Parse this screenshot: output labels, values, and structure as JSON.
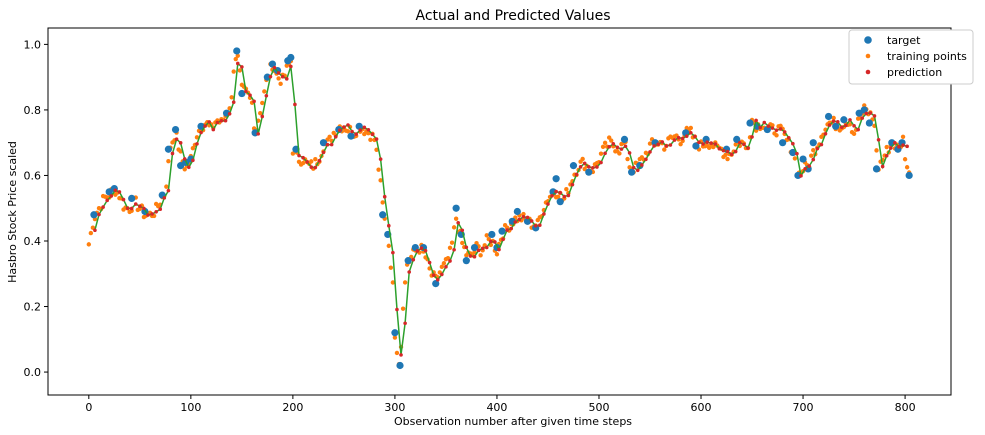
{
  "chart_data": {
    "type": "scatter",
    "title": "Actual and Predicted Values",
    "xlabel": "Observation number after given time steps",
    "ylabel": "Hasbro Stock Price scaled",
    "xlim": [
      -40,
      845
    ],
    "ylim": [
      -0.07,
      1.05
    ],
    "x_ticks": [
      0,
      100,
      200,
      300,
      400,
      500,
      600,
      700,
      800
    ],
    "y_ticks": [
      0.0,
      0.2,
      0.4,
      0.6,
      0.8,
      1.0
    ],
    "legend_position": "top-right",
    "grid": false,
    "series": [
      {
        "name": "target",
        "style": "large-dot",
        "color": "#1f77b4"
      },
      {
        "name": "training points",
        "style": "small-dot",
        "color": "#ff7f0e"
      },
      {
        "name": "prediction",
        "style": "small-dot-with-line",
        "color": "#d62728",
        "line_color": "#2ca02c"
      }
    ],
    "keypoints": [
      [
        0,
        0.39
      ],
      [
        5,
        0.47
      ],
      [
        10,
        0.5
      ],
      [
        15,
        0.53
      ],
      [
        20,
        0.54
      ],
      [
        25,
        0.56
      ],
      [
        30,
        0.54
      ],
      [
        35,
        0.5
      ],
      [
        40,
        0.5
      ],
      [
        45,
        0.52
      ],
      [
        50,
        0.5
      ],
      [
        55,
        0.48
      ],
      [
        60,
        0.48
      ],
      [
        65,
        0.49
      ],
      [
        70,
        0.52
      ],
      [
        75,
        0.55
      ],
      [
        80,
        0.69
      ],
      [
        85,
        0.73
      ],
      [
        90,
        0.66
      ],
      [
        95,
        0.62
      ],
      [
        100,
        0.65
      ],
      [
        105,
        0.72
      ],
      [
        110,
        0.75
      ],
      [
        115,
        0.76
      ],
      [
        120,
        0.74
      ],
      [
        125,
        0.77
      ],
      [
        130,
        0.76
      ],
      [
        135,
        0.79
      ],
      [
        140,
        0.83
      ],
      [
        142,
        0.93
      ],
      [
        145,
        0.98
      ],
      [
        150,
        0.86
      ],
      [
        155,
        0.85
      ],
      [
        160,
        0.82
      ],
      [
        163,
        0.73
      ],
      [
        168,
        0.8
      ],
      [
        172,
        0.85
      ],
      [
        175,
        0.9
      ],
      [
        180,
        0.94
      ],
      [
        185,
        0.9
      ],
      [
        190,
        0.89
      ],
      [
        195,
        0.93
      ],
      [
        198,
        0.95
      ],
      [
        200,
        0.68
      ],
      [
        205,
        0.65
      ],
      [
        210,
        0.65
      ],
      [
        215,
        0.63
      ],
      [
        220,
        0.63
      ],
      [
        225,
        0.65
      ],
      [
        230,
        0.69
      ],
      [
        235,
        0.7
      ],
      [
        240,
        0.73
      ],
      [
        245,
        0.75
      ],
      [
        250,
        0.75
      ],
      [
        255,
        0.74
      ],
      [
        260,
        0.73
      ],
      [
        265,
        0.75
      ],
      [
        270,
        0.74
      ],
      [
        275,
        0.73
      ],
      [
        280,
        0.71
      ],
      [
        283,
        0.65
      ],
      [
        286,
        0.57
      ],
      [
        289,
        0.48
      ],
      [
        292,
        0.43
      ],
      [
        295,
        0.37
      ],
      [
        298,
        0.26
      ],
      [
        300,
        0.12
      ],
      [
        303,
        0.05
      ],
      [
        305,
        0.02
      ],
      [
        308,
        0.21
      ],
      [
        312,
        0.33
      ],
      [
        316,
        0.35
      ],
      [
        320,
        0.37
      ],
      [
        325,
        0.38
      ],
      [
        330,
        0.35
      ],
      [
        335,
        0.3
      ],
      [
        340,
        0.28
      ],
      [
        345,
        0.31
      ],
      [
        350,
        0.33
      ],
      [
        355,
        0.37
      ],
      [
        360,
        0.47
      ],
      [
        365,
        0.4
      ],
      [
        370,
        0.36
      ],
      [
        375,
        0.35
      ],
      [
        380,
        0.38
      ],
      [
        385,
        0.37
      ],
      [
        390,
        0.4
      ],
      [
        395,
        0.4
      ],
      [
        400,
        0.37
      ],
      [
        405,
        0.42
      ],
      [
        410,
        0.44
      ],
      [
        415,
        0.46
      ],
      [
        420,
        0.47
      ],
      [
        425,
        0.47
      ],
      [
        430,
        0.46
      ],
      [
        435,
        0.45
      ],
      [
        440,
        0.45
      ],
      [
        445,
        0.5
      ],
      [
        450,
        0.53
      ],
      [
        455,
        0.55
      ],
      [
        460,
        0.55
      ],
      [
        465,
        0.52
      ],
      [
        470,
        0.56
      ],
      [
        475,
        0.6
      ],
      [
        480,
        0.63
      ],
      [
        485,
        0.64
      ],
      [
        490,
        0.62
      ],
      [
        495,
        0.62
      ],
      [
        500,
        0.65
      ],
      [
        505,
        0.68
      ],
      [
        510,
        0.7
      ],
      [
        515,
        0.69
      ],
      [
        520,
        0.68
      ],
      [
        525,
        0.7
      ],
      [
        530,
        0.63
      ],
      [
        535,
        0.62
      ],
      [
        540,
        0.64
      ],
      [
        545,
        0.66
      ],
      [
        550,
        0.69
      ],
      [
        555,
        0.7
      ],
      [
        560,
        0.7
      ],
      [
        565,
        0.69
      ],
      [
        570,
        0.71
      ],
      [
        575,
        0.72
      ],
      [
        580,
        0.71
      ],
      [
        585,
        0.73
      ],
      [
        590,
        0.73
      ],
      [
        595,
        0.7
      ],
      [
        600,
        0.69
      ],
      [
        605,
        0.7
      ],
      [
        610,
        0.7
      ],
      [
        615,
        0.68
      ],
      [
        620,
        0.68
      ],
      [
        625,
        0.66
      ],
      [
        630,
        0.67
      ],
      [
        635,
        0.7
      ],
      [
        640,
        0.7
      ],
      [
        645,
        0.68
      ],
      [
        650,
        0.77
      ],
      [
        655,
        0.75
      ],
      [
        660,
        0.76
      ],
      [
        665,
        0.74
      ],
      [
        670,
        0.74
      ],
      [
        675,
        0.74
      ],
      [
        680,
        0.73
      ],
      [
        685,
        0.7
      ],
      [
        690,
        0.68
      ],
      [
        695,
        0.6
      ],
      [
        700,
        0.62
      ],
      [
        705,
        0.63
      ],
      [
        710,
        0.67
      ],
      [
        715,
        0.7
      ],
      [
        720,
        0.74
      ],
      [
        725,
        0.76
      ],
      [
        730,
        0.76
      ],
      [
        735,
        0.75
      ],
      [
        740,
        0.76
      ],
      [
        745,
        0.77
      ],
      [
        750,
        0.73
      ],
      [
        755,
        0.77
      ],
      [
        760,
        0.8
      ],
      [
        765,
        0.79
      ],
      [
        770,
        0.76
      ],
      [
        773,
        0.62
      ],
      [
        778,
        0.65
      ],
      [
        783,
        0.68
      ],
      [
        788,
        0.7
      ],
      [
        793,
        0.68
      ],
      [
        798,
        0.71
      ],
      [
        801,
        0.64
      ],
      [
        804,
        0.6
      ]
    ],
    "target_points": [
      [
        5,
        0.48
      ],
      [
        20,
        0.55
      ],
      [
        25,
        0.56
      ],
      [
        42,
        0.53
      ],
      [
        55,
        0.49
      ],
      [
        72,
        0.54
      ],
      [
        78,
        0.68
      ],
      [
        85,
        0.74
      ],
      [
        90,
        0.63
      ],
      [
        95,
        0.64
      ],
      [
        100,
        0.65
      ],
      [
        110,
        0.75
      ],
      [
        135,
        0.79
      ],
      [
        145,
        0.98
      ],
      [
        150,
        0.85
      ],
      [
        163,
        0.73
      ],
      [
        175,
        0.9
      ],
      [
        180,
        0.94
      ],
      [
        185,
        0.92
      ],
      [
        195,
        0.95
      ],
      [
        198,
        0.96
      ],
      [
        203,
        0.68
      ],
      [
        230,
        0.7
      ],
      [
        245,
        0.74
      ],
      [
        257,
        0.72
      ],
      [
        265,
        0.75
      ],
      [
        288,
        0.48
      ],
      [
        293,
        0.42
      ],
      [
        300,
        0.12
      ],
      [
        305,
        0.02
      ],
      [
        313,
        0.34
      ],
      [
        320,
        0.38
      ],
      [
        328,
        0.38
      ],
      [
        340,
        0.27
      ],
      [
        360,
        0.5
      ],
      [
        365,
        0.42
      ],
      [
        370,
        0.34
      ],
      [
        378,
        0.38
      ],
      [
        395,
        0.42
      ],
      [
        400,
        0.38
      ],
      [
        405,
        0.43
      ],
      [
        415,
        0.46
      ],
      [
        420,
        0.49
      ],
      [
        430,
        0.46
      ],
      [
        438,
        0.44
      ],
      [
        455,
        0.55
      ],
      [
        458,
        0.59
      ],
      [
        462,
        0.52
      ],
      [
        475,
        0.63
      ],
      [
        490,
        0.61
      ],
      [
        525,
        0.71
      ],
      [
        532,
        0.61
      ],
      [
        540,
        0.63
      ],
      [
        555,
        0.7
      ],
      [
        585,
        0.73
      ],
      [
        595,
        0.69
      ],
      [
        605,
        0.71
      ],
      [
        625,
        0.68
      ],
      [
        635,
        0.71
      ],
      [
        648,
        0.76
      ],
      [
        655,
        0.75
      ],
      [
        665,
        0.74
      ],
      [
        680,
        0.7
      ],
      [
        690,
        0.67
      ],
      [
        695,
        0.6
      ],
      [
        700,
        0.65
      ],
      [
        705,
        0.62
      ],
      [
        710,
        0.7
      ],
      [
        725,
        0.78
      ],
      [
        732,
        0.75
      ],
      [
        740,
        0.77
      ],
      [
        755,
        0.79
      ],
      [
        760,
        0.8
      ],
      [
        765,
        0.76
      ],
      [
        772,
        0.62
      ],
      [
        787,
        0.7
      ],
      [
        793,
        0.68
      ],
      [
        797,
        0.7
      ],
      [
        804,
        0.6
      ]
    ]
  }
}
